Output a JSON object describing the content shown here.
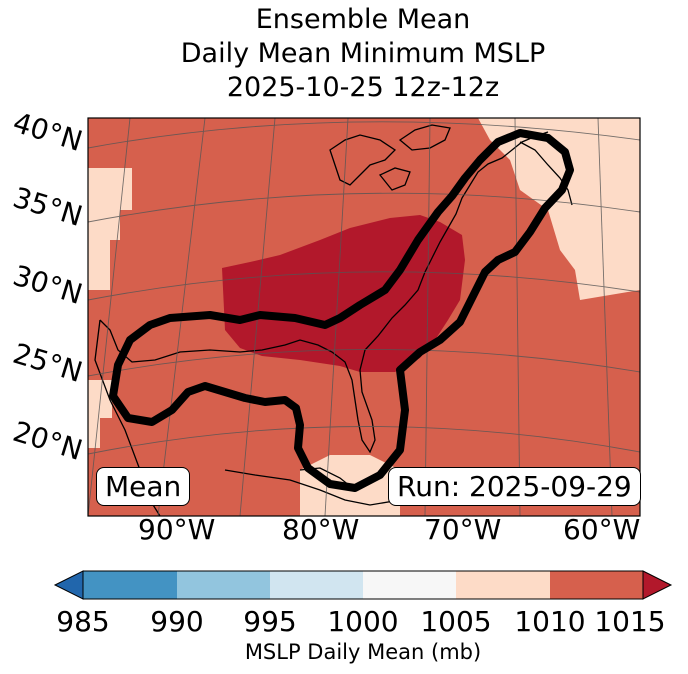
{
  "title": {
    "line1": "Ensemble Mean",
    "line2": "Daily Mean Minimum MSLP",
    "line3": "2025-10-25 12z-12z"
  },
  "map": {
    "lat_labels": [
      "40°N",
      "35°N",
      "30°N",
      "25°N",
      "20°N"
    ],
    "lon_labels": [
      "90°W",
      "80°W",
      "70°W",
      "60°W"
    ],
    "stat_label": "Mean",
    "run_label": "Run: 2025-09-29",
    "colors": {
      "c1005_1010": "#fddbc7",
      "c1010_1015": "#d6604d",
      "c_above_1015": "#b2182b",
      "outline": "#000000"
    }
  },
  "colorbar": {
    "ticks": [
      "985",
      "990",
      "995",
      "1000",
      "1005",
      "1010",
      "1015"
    ],
    "label": "MSLP Daily Mean (mb)",
    "colors": [
      "#2166ac",
      "#4393c3",
      "#92c5de",
      "#d1e5f0",
      "#f7f7f7",
      "#fddbc7",
      "#d6604d",
      "#b2182b"
    ]
  }
}
